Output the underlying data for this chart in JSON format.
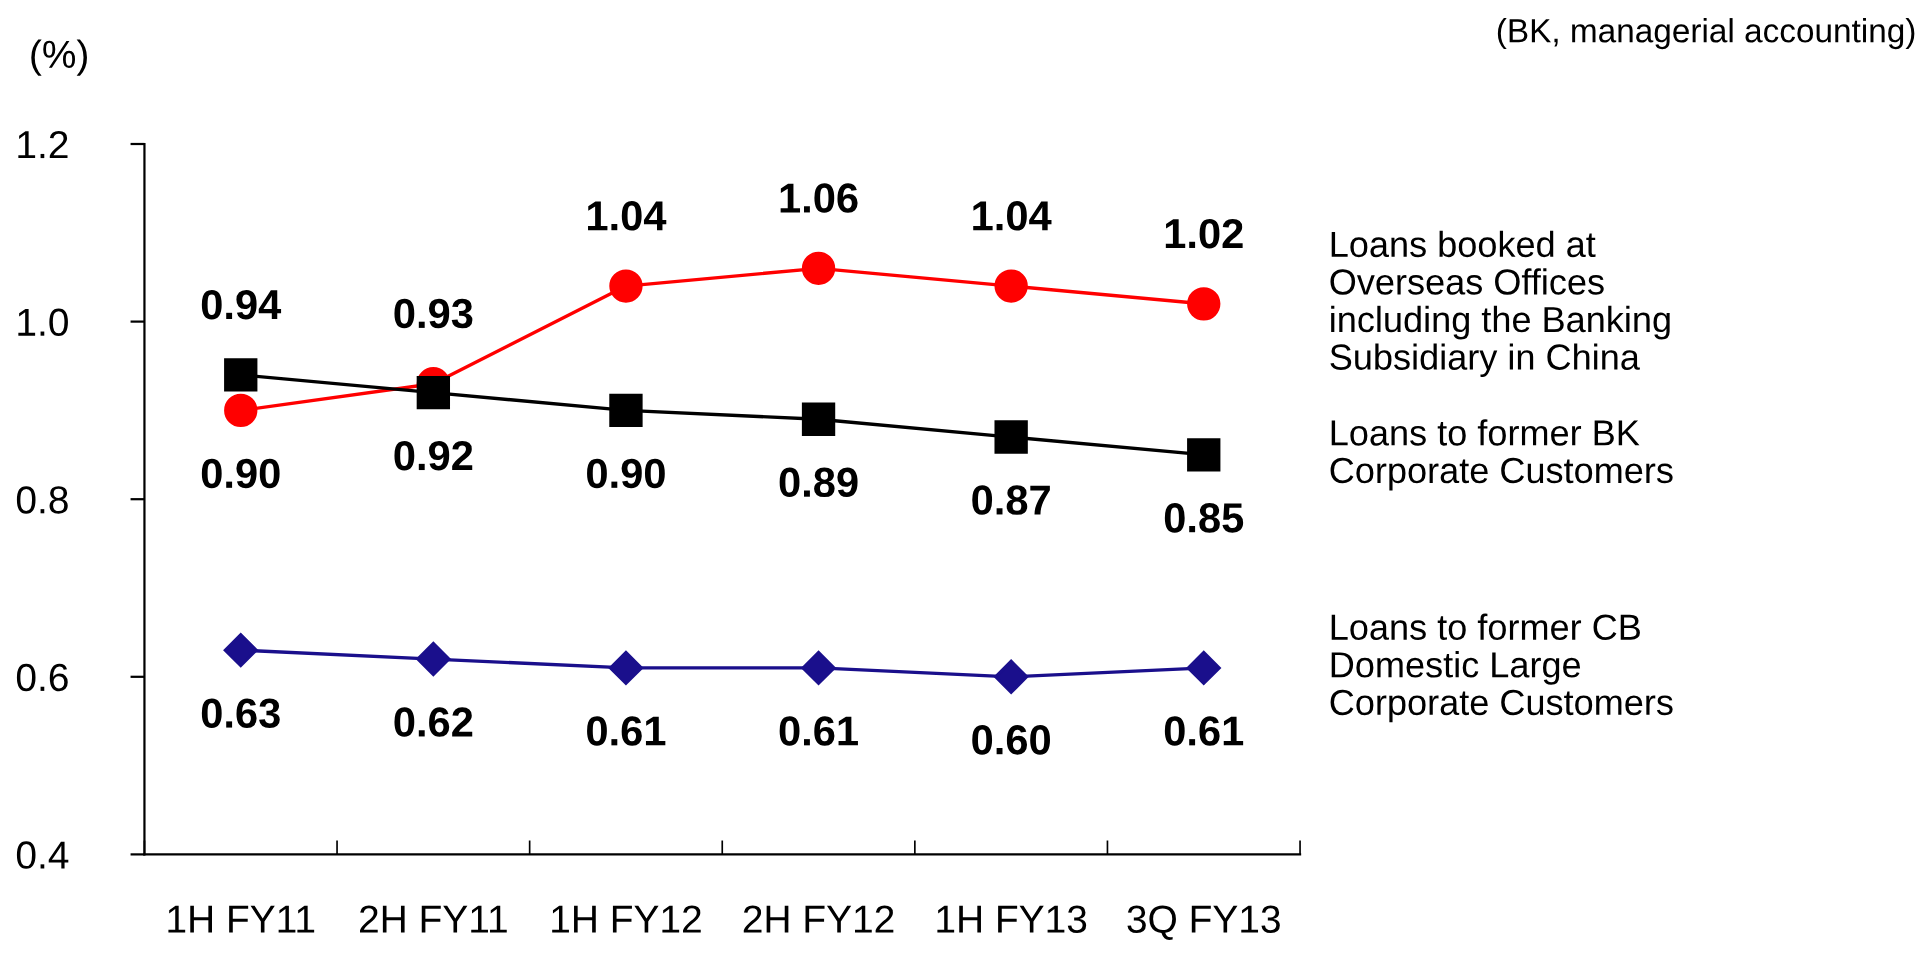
{
  "chart_data": {
    "type": "line",
    "ylabel": "(%)",
    "annotations": [
      "(BK, managerial accounting)"
    ],
    "categories": [
      "1H FY11",
      "2H FY11",
      "1H FY12",
      "2H FY12",
      "1H FY13",
      "3Q FY13"
    ],
    "series": [
      {
        "name": "Loans booked at\nOverseas Offices\nincluding the Banking\nSubsidiary in China",
        "color": "#ff0000",
        "marker": "circle",
        "values": [
          0.9,
          0.93,
          1.04,
          1.06,
          1.04,
          1.02
        ],
        "value_labels": [
          "0.90",
          "0.93",
          "1.04",
          "1.06",
          "1.04",
          "1.02"
        ]
      },
      {
        "name": "Loans to former BK\nCorporate Customers",
        "color": "#000000",
        "marker": "square",
        "values": [
          0.94,
          0.92,
          0.9,
          0.89,
          0.87,
          0.85
        ],
        "value_labels": [
          "0.94",
          "0.92",
          "0.90",
          "0.89",
          "0.87",
          "0.85"
        ]
      },
      {
        "name": "Loans to former CB\nDomestic Large\nCorporate Customers",
        "color": "#1a0f8c",
        "marker": "diamond",
        "values": [
          0.63,
          0.62,
          0.61,
          0.61,
          0.6,
          0.61
        ],
        "value_labels": [
          "0.63",
          "0.62",
          "0.61",
          "0.61",
          "0.60",
          "0.61"
        ]
      }
    ],
    "ylim": [
      0.4,
      1.2
    ],
    "yticks": [
      0.4,
      0.6,
      0.8,
      {
        "value": 1.0,
        "label": "1.0"
      },
      1.2
    ],
    "grid": false,
    "legend": false,
    "line_style": "solid"
  }
}
